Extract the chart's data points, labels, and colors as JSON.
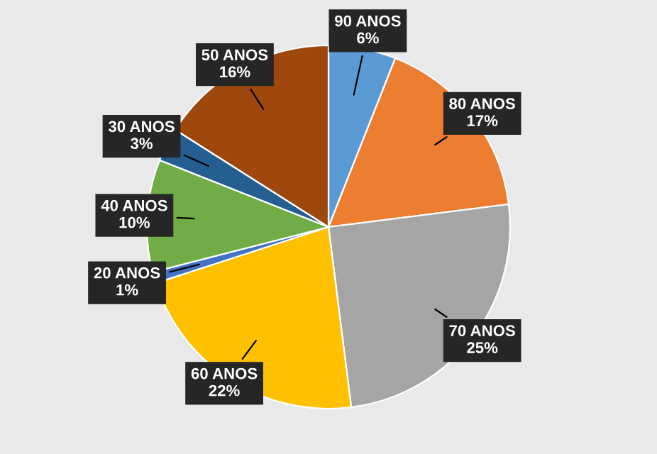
{
  "chart_data": {
    "type": "pie",
    "categories": [
      "90 ANOS",
      "80 ANOS",
      "70 ANOS",
      "60 ANOS",
      "20 ANOS",
      "40 ANOS",
      "30 ANOS",
      "50 ANOS"
    ],
    "values": [
      6,
      17,
      25,
      22,
      1,
      10,
      3,
      16
    ],
    "colors": [
      "#5b9bd5",
      "#ed7d31",
      "#a5a5a5",
      "#ffc000",
      "#4472c4",
      "#70ad47",
      "#255e91",
      "#9e480e"
    ],
    "value_labels": [
      "6%",
      "17%",
      "25%",
      "22%",
      "1%",
      "10%",
      "3%",
      "16%"
    ]
  }
}
